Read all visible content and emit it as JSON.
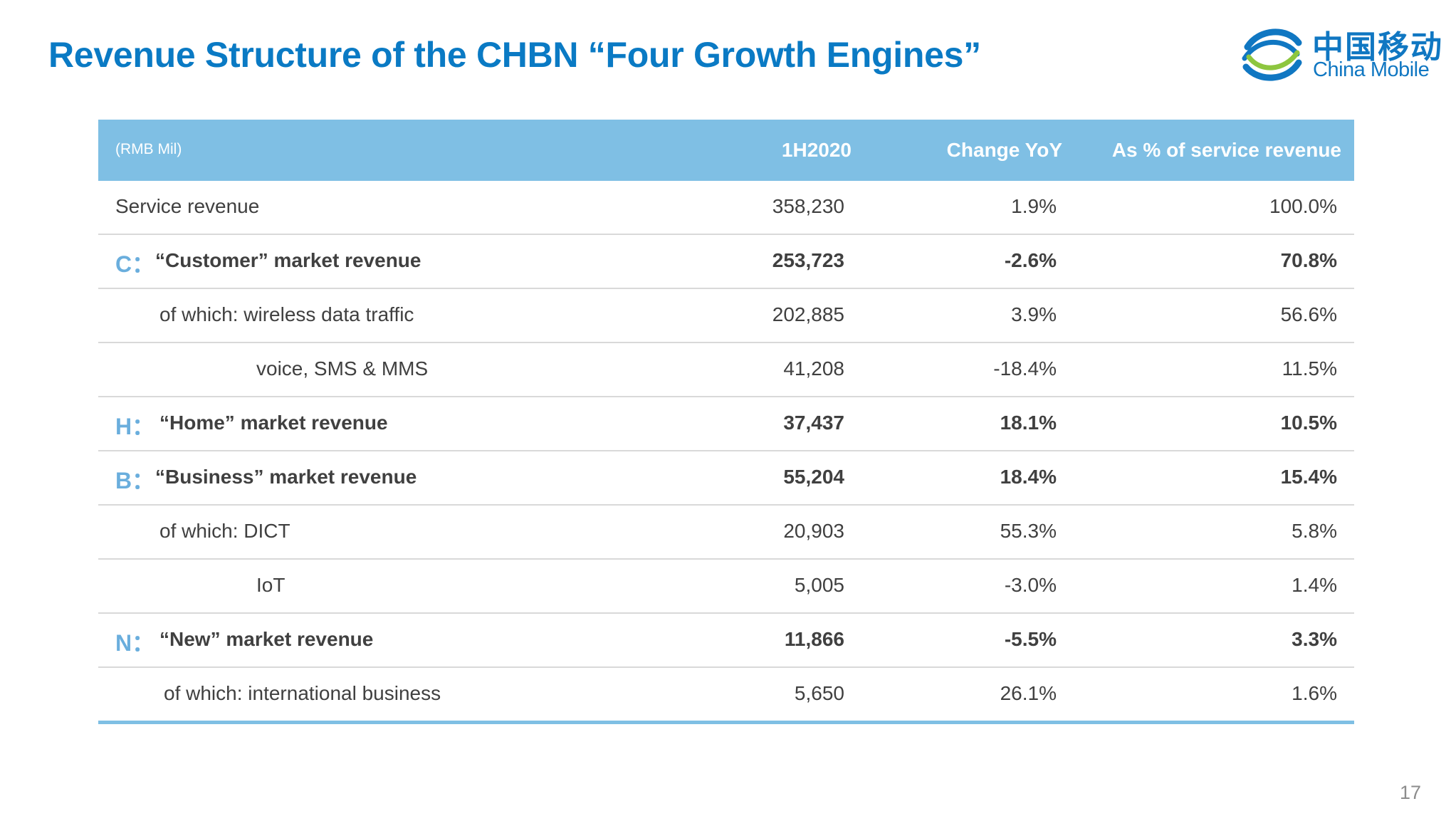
{
  "title": "Revenue Structure of the CHBN “Four Growth Engines”",
  "logo": {
    "cn": "中国移动",
    "en": "China Mobile",
    "brand_color": "#1077c2",
    "accent_green": "#8dc63f"
  },
  "table": {
    "unit_label": "(RMB Mil)",
    "headers": [
      "1H2020",
      "Change YoY",
      "As % of service revenue"
    ],
    "header_color": "#7fbfe4",
    "rows": [
      {
        "prefix": "",
        "label": "Service revenue",
        "v1": "358,230",
        "v2": "1.9%",
        "v3": "100.0%"
      },
      {
        "prefix": "C：",
        "label": "“Customer” market revenue",
        "v1": "253,723",
        "v2": "-2.6%",
        "v3": "70.8%"
      },
      {
        "prefix": "",
        "label": "of which: wireless data traffic",
        "v1": "202,885",
        "v2": "3.9%",
        "v3": "56.6%"
      },
      {
        "prefix": "",
        "label": "voice, SMS & MMS",
        "v1": "41,208",
        "v2": "-18.4%",
        "v3": "11.5%"
      },
      {
        "prefix": "H：",
        "label": "“Home” market revenue",
        "v1": "37,437",
        "v2": "18.1%",
        "v3": "10.5%"
      },
      {
        "prefix": "B：",
        "label": "“Business” market revenue",
        "v1": "55,204",
        "v2": "18.4%",
        "v3": "15.4%"
      },
      {
        "prefix": "",
        "label": "of which: DICT",
        "v1": "20,903",
        "v2": "55.3%",
        "v3": "5.8%"
      },
      {
        "prefix": "",
        "label": "IoT",
        "v1": "5,005",
        "v2": "-3.0%",
        "v3": "1.4%"
      },
      {
        "prefix": "N：",
        "label": "“New” market revenue",
        "v1": "11,866",
        "v2": "-5.5%",
        "v3": "3.3%"
      },
      {
        "prefix": "",
        "label": "of which: international business",
        "v1": "5,650",
        "v2": "26.1%",
        "v3": "1.6%"
      }
    ]
  },
  "page_number": "17"
}
